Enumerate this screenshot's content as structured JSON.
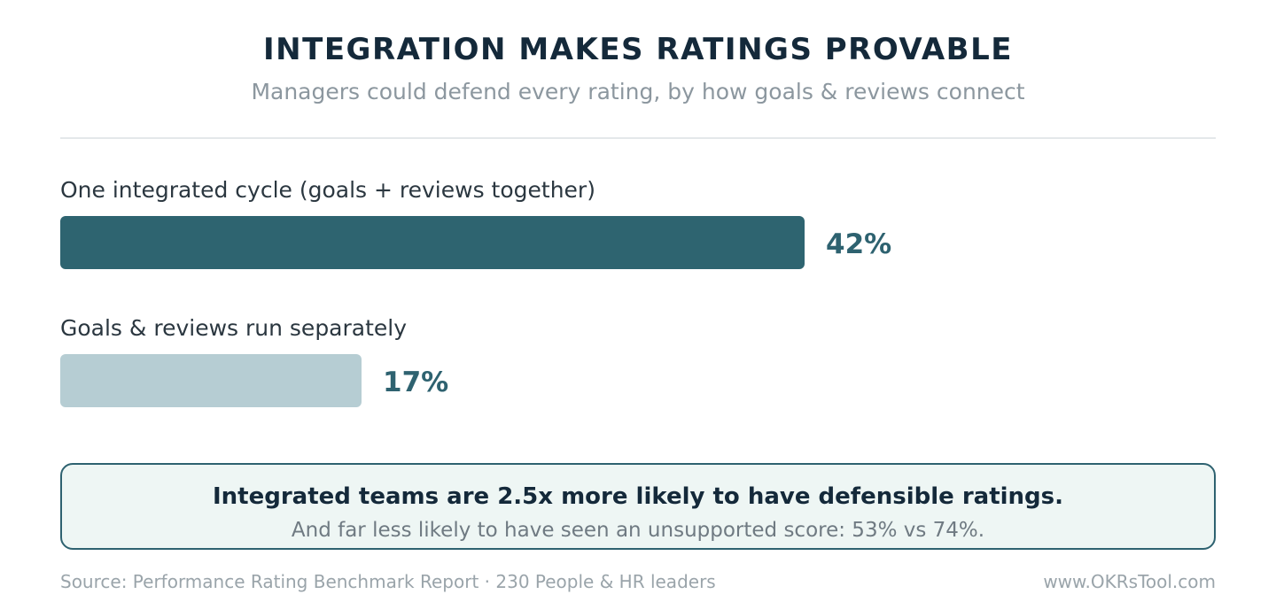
{
  "chart_data": {
    "type": "bar",
    "orientation": "horizontal",
    "title": "INTEGRATION MAKES RATINGS PROVABLE",
    "subtitle": "Managers could defend every rating, by how goals & reviews connect",
    "categories": [
      "One integrated cycle (goals + reviews together)",
      "Goals & reviews run separately"
    ],
    "values": [
      42,
      17
    ],
    "value_labels": [
      "42%",
      "17%"
    ],
    "unit": "%",
    "colors": [
      "#2e6470",
      "#b6cdd3"
    ]
  },
  "callout": {
    "headline": "Integrated teams are 2.5x more likely to have defensible ratings.",
    "detail": "And far less likely to have seen an unsupported score: 53% vs 74%."
  },
  "footer": {
    "source": "Source: Performance Rating Benchmark Report · 230 People & HR leaders",
    "website": "www.OKRsTool.com"
  }
}
